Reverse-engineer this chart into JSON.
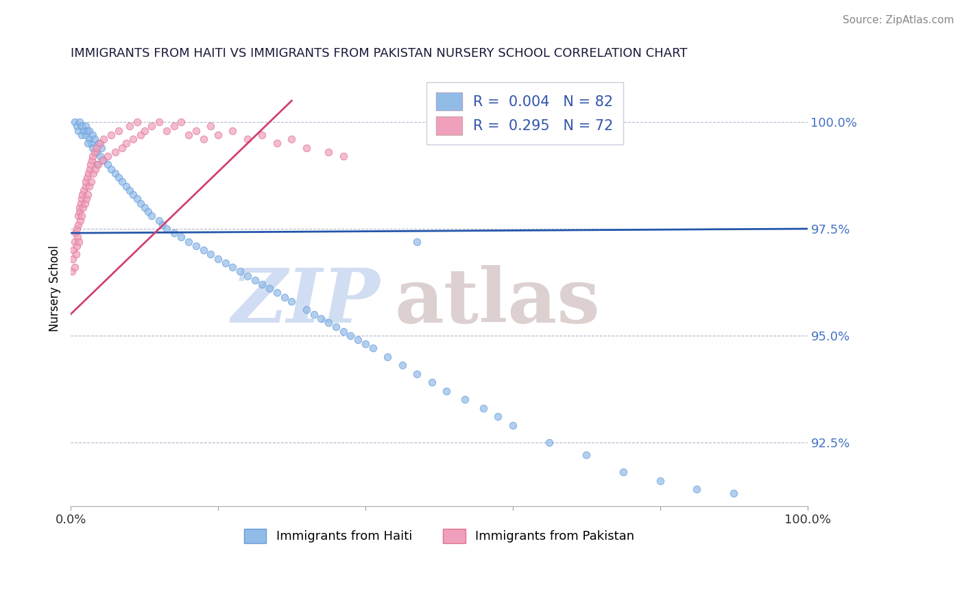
{
  "title": "IMMIGRANTS FROM HAITI VS IMMIGRANTS FROM PAKISTAN NURSERY SCHOOL CORRELATION CHART",
  "source": "Source: ZipAtlas.com",
  "ylabel": "Nursery School",
  "xlim": [
    0,
    100
  ],
  "ylim": [
    91.0,
    101.2
  ],
  "yticks": [
    92.5,
    95.0,
    97.5,
    100.0
  ],
  "ytick_labels": [
    "92.5%",
    "95.0%",
    "97.5%",
    "100.0%"
  ],
  "xticks": [
    0,
    20,
    40,
    60,
    80,
    100
  ],
  "xtick_labels": [
    "0.0%",
    "",
    "",
    "",
    "",
    "100.0%"
  ],
  "haiti_color": "#92bce8",
  "pakistan_color": "#f0a0bc",
  "trend_haiti_color": "#2255aa",
  "trend_pakistan_color": "#d04070",
  "haiti_scatter_edge": "#6699dd",
  "pakistan_scatter_edge": "#e07090",
  "watermark_zip_color": "#c8d8f0",
  "watermark_atlas_color": "#d8c8c8",
  "haiti_x": [
    0.5,
    0.8,
    1.0,
    1.2,
    1.5,
    1.5,
    1.8,
    2.0,
    2.0,
    2.2,
    2.5,
    2.5,
    2.8,
    3.0,
    3.0,
    3.2,
    3.5,
    3.8,
    4.0,
    4.2,
    4.5,
    5.0,
    5.5,
    6.0,
    6.5,
    7.0,
    7.5,
    8.0,
    8.5,
    9.0,
    9.5,
    10.0,
    10.5,
    11.0,
    12.0,
    12.5,
    13.0,
    14.0,
    15.0,
    16.0,
    17.0,
    18.0,
    19.0,
    20.0,
    21.0,
    22.0,
    23.0,
    24.0,
    25.0,
    26.0,
    27.0,
    28.0,
    29.0,
    30.0,
    32.0,
    33.0,
    34.0,
    35.0,
    36.0,
    37.0,
    38.0,
    39.0,
    40.0,
    41.0,
    43.0,
    45.0,
    47.0,
    49.0,
    51.0,
    53.5,
    56.0,
    58.0,
    60.0,
    65.0,
    70.0,
    75.0,
    80.0,
    85.0,
    90.0,
    47.0,
    3.5,
    2.3
  ],
  "haiti_y": [
    100.0,
    99.9,
    99.8,
    100.0,
    99.9,
    99.7,
    99.8,
    99.7,
    99.9,
    99.8,
    99.6,
    99.8,
    99.5,
    99.7,
    99.4,
    99.6,
    99.3,
    99.5,
    99.2,
    99.4,
    99.1,
    99.0,
    98.9,
    98.8,
    98.7,
    98.6,
    98.5,
    98.4,
    98.3,
    98.2,
    98.1,
    98.0,
    97.9,
    97.8,
    97.7,
    97.6,
    97.5,
    97.4,
    97.3,
    97.2,
    97.1,
    97.0,
    96.9,
    96.8,
    96.7,
    96.6,
    96.5,
    96.4,
    96.3,
    96.2,
    96.1,
    96.0,
    95.9,
    95.8,
    95.6,
    95.5,
    95.4,
    95.3,
    95.2,
    95.1,
    95.0,
    94.9,
    94.8,
    94.7,
    94.5,
    94.3,
    94.1,
    93.9,
    93.7,
    93.5,
    93.3,
    93.1,
    92.9,
    92.5,
    92.2,
    91.8,
    91.6,
    91.4,
    91.3,
    97.2,
    99.0,
    99.5
  ],
  "pakistan_x": [
    0.2,
    0.3,
    0.4,
    0.5,
    0.5,
    0.6,
    0.7,
    0.8,
    0.8,
    0.9,
    1.0,
    1.0,
    1.1,
    1.2,
    1.2,
    1.3,
    1.4,
    1.5,
    1.5,
    1.6,
    1.7,
    1.8,
    1.9,
    2.0,
    2.0,
    2.1,
    2.2,
    2.3,
    2.4,
    2.5,
    2.6,
    2.7,
    2.8,
    2.9,
    3.0,
    3.1,
    3.2,
    3.3,
    3.5,
    3.7,
    4.0,
    4.3,
    4.5,
    5.0,
    5.5,
    6.0,
    6.5,
    7.0,
    7.5,
    8.0,
    8.5,
    9.0,
    9.5,
    10.0,
    11.0,
    12.0,
    13.0,
    14.0,
    15.0,
    16.0,
    17.0,
    18.0,
    19.0,
    20.0,
    22.0,
    24.0,
    26.0,
    28.0,
    30.0,
    32.0,
    35.0,
    37.0
  ],
  "pakistan_y": [
    96.5,
    96.8,
    97.0,
    96.6,
    97.2,
    97.4,
    96.9,
    97.1,
    97.5,
    97.3,
    97.6,
    97.8,
    97.2,
    97.9,
    98.0,
    97.7,
    98.1,
    98.2,
    97.8,
    98.3,
    98.0,
    98.4,
    98.1,
    98.5,
    98.6,
    98.2,
    98.7,
    98.3,
    98.8,
    98.5,
    98.9,
    99.0,
    98.6,
    99.1,
    99.2,
    98.8,
    99.3,
    98.9,
    99.4,
    99.0,
    99.5,
    99.1,
    99.6,
    99.2,
    99.7,
    99.3,
    99.8,
    99.4,
    99.5,
    99.9,
    99.6,
    100.0,
    99.7,
    99.8,
    99.9,
    100.0,
    99.8,
    99.9,
    100.0,
    99.7,
    99.8,
    99.6,
    99.9,
    99.7,
    99.8,
    99.6,
    99.7,
    99.5,
    99.6,
    99.4,
    99.3,
    99.2
  ],
  "trend_haiti_intercept": 97.4,
  "trend_haiti_slope": 0.001,
  "trend_pakistan_start_x": 0,
  "trend_pakistan_start_y": 95.5,
  "trend_pakistan_end_x": 30,
  "trend_pakistan_end_y": 100.5
}
